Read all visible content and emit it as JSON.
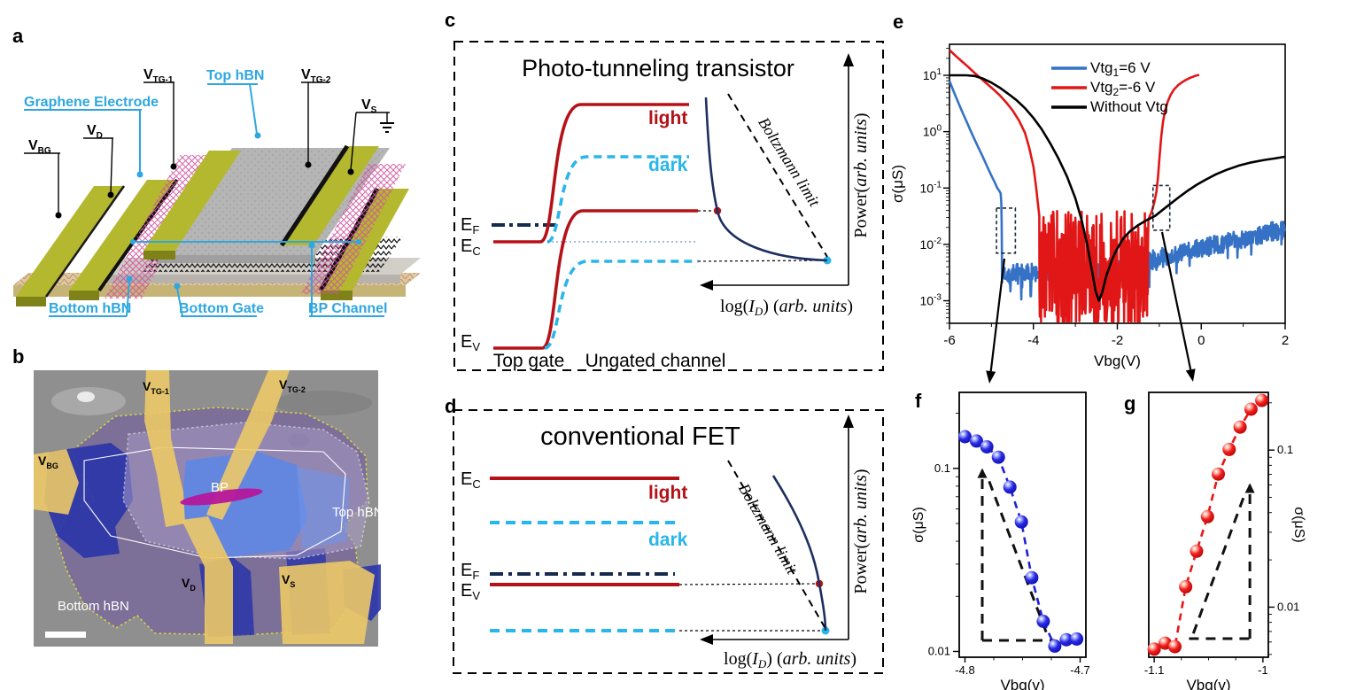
{
  "figure": {
    "background": "#ffffff"
  },
  "tags": {
    "a": "a",
    "b": "b",
    "c": "c",
    "d": "d",
    "e": "e",
    "f": "f",
    "g": "g"
  },
  "panel_a": {
    "labels": {
      "vbg": {
        "base": "V",
        "sub": "BG"
      },
      "vd": {
        "base": "V",
        "sub": "D"
      },
      "vtg1": {
        "base": "V",
        "sub": "TG-1"
      },
      "vtg2": {
        "base": "V",
        "sub": "TG-2"
      },
      "vs": {
        "base": "V",
        "sub": "S"
      },
      "top_hbn": "Top hBN",
      "graphene_electrode": "Graphene Electrode",
      "bottom_hbn": "Bottom hBN",
      "bottom_gate": "Bottom Gate",
      "bp_channel": "BP Channel"
    },
    "colors": {
      "material_label": "#2ea7e0",
      "electrode_top": "#b4b82f",
      "electrode_side": "#7e8218",
      "substrate": "#d9cd92",
      "hbn_slab": "#c9c5bf",
      "top_hbn": "#b5b5b5",
      "graphene": "#cf539c"
    }
  },
  "panel_b": {
    "labels": {
      "vtg1": {
        "base": "V",
        "sub": "TG-1"
      },
      "vtg2": {
        "base": "V",
        "sub": "TG-2"
      },
      "vbg": {
        "base": "V",
        "sub": "BG"
      },
      "vd": {
        "base": "V",
        "sub": "D"
      },
      "vs": {
        "base": "V",
        "sub": "S"
      },
      "bp": "BP",
      "top_hbn": "Top hBN",
      "bottom_hbn": "Bottom hBN"
    }
  },
  "panel_c": {
    "title": "Photo-tunneling transistor",
    "bands": {
      "ef": {
        "base": "E",
        "sub": "F"
      },
      "ec": {
        "base": "E",
        "sub": "C"
      },
      "ev": {
        "base": "E",
        "sub": "V"
      }
    },
    "curves": {
      "light": "light",
      "dark": "dark"
    },
    "boltzmann": "Boltzmann limit",
    "power_label": {
      "p1": "Power(",
      "p2": "arb. units",
      "p3": ")"
    },
    "log_label": {
      "p1": "log(",
      "p2": "I",
      "p3": "D",
      "p4": ") (",
      "p5": "arb. units",
      "p6": ")"
    },
    "x_regions": {
      "top_gate": "Top gate",
      "ungated": "Ungated channel"
    }
  },
  "panel_d": {
    "title": "conventional FET",
    "bands": {
      "ef": {
        "base": "E",
        "sub": "F"
      },
      "ec": {
        "base": "E",
        "sub": "C"
      },
      "ev": {
        "base": "E",
        "sub": "V"
      }
    },
    "curves": {
      "light": "light",
      "dark": "dark"
    },
    "boltzmann": "Boltzmann limit",
    "power_label": {
      "p1": "Power(",
      "p2": "arb. units",
      "p3": ")"
    },
    "log_label": {
      "p1": "log(",
      "p2": "I",
      "p3": "D",
      "p4": ") (",
      "p5": "arb. units",
      "p6": ")"
    }
  },
  "chart_data": [
    {
      "id": "e",
      "type": "line",
      "xlabel": "Vbg(V)",
      "ylabel": "σ(μS)",
      "xlim": [
        -6,
        2
      ],
      "xticks": [
        -6,
        -4,
        -2,
        0,
        2
      ],
      "x_minor_ticks": [
        -5,
        -3,
        -1,
        1
      ],
      "ylim_exp": [
        -3.4,
        1.55
      ],
      "ytick_exps": [
        1,
        0,
        -1,
        -2,
        -3
      ],
      "grid": false,
      "legend_position": "top-center",
      "legend": [
        {
          "pre": "Vtg",
          "sub": "1",
          "post": "=6 V",
          "color": "#3572c6"
        },
        {
          "pre": "Vtg",
          "sub": "2",
          "post": "=-6 V",
          "color": "#e11717"
        },
        {
          "pre": "Without Vtg",
          "sub": "",
          "post": "",
          "color": "#000000"
        }
      ],
      "series": [
        {
          "name": "Vtg1=6V",
          "color": "#3572c6",
          "segments": [
            {
              "type": "points",
              "pts": [
                [
                  -6,
                  8
                ],
                [
                  -5.92,
                  5.6
                ],
                [
                  -5.84,
                  4
                ],
                [
                  -5.76,
                  2.9
                ],
                [
                  -5.68,
                  2.1
                ],
                [
                  -5.6,
                  1.55
                ],
                [
                  -5.5,
                  1.05
                ],
                [
                  -5.4,
                  0.72
                ],
                [
                  -5.3,
                  0.5
                ],
                [
                  -5.2,
                  0.35
                ],
                [
                  -5.1,
                  0.24
                ],
                [
                  -5,
                  0.165
                ],
                [
                  -4.92,
                  0.125
                ],
                [
                  -4.86,
                  0.1
                ],
                [
                  -4.81,
                  0.088
                ],
                [
                  -4.78,
                  0.08
                ],
                [
                  -4.765,
                  0.055
                ],
                [
                  -4.757,
                  0.025
                ],
                [
                  -4.752,
                  0.01
                ],
                [
                  -4.75,
                  0.0062
                ]
              ]
            },
            {
              "type": "noise",
              "x0": -4.748,
              "x1": 2,
              "step": 0.01,
              "base0": 0.0031,
              "xbreak": -2.5,
              "base1": 0.019,
              "amp": 0.17,
              "spike": 0.04,
              "spike_depth": 0.3,
              "seed": 7
            }
          ]
        },
        {
          "name": "Vtg2=-6V",
          "color": "#e11717",
          "segments": [
            {
              "type": "points",
              "pts": [
                [
                  -6,
                  28
                ],
                [
                  -5.85,
                  22
                ],
                [
                  -5.7,
                  17.5
                ],
                [
                  -5.55,
                  14
                ],
                [
                  -5.4,
                  11
                ],
                [
                  -5.25,
                  8.8
                ],
                [
                  -5.1,
                  7
                ],
                [
                  -4.95,
                  5.6
                ],
                [
                  -4.8,
                  4.4
                ],
                [
                  -4.65,
                  3.3
                ],
                [
                  -4.5,
                  2.4
                ],
                [
                  -4.35,
                  1.6
                ],
                [
                  -4.2,
                  0.95
                ],
                [
                  -4.1,
                  0.52
                ],
                [
                  -4,
                  0.24
                ],
                [
                  -3.94,
                  0.11
                ],
                [
                  -3.89,
                  0.05
                ],
                [
                  -3.86,
                  0.032
                ]
              ]
            },
            {
              "type": "noise",
              "x0": -3.855,
              "x1": -1.26,
              "step": 0.0075,
              "base0": 0.0045,
              "xbreak": -1.26,
              "base1": 0.0045,
              "amp": 0.95,
              "spike": 0.2,
              "spike_depth": 0.85,
              "seed": 3
            },
            {
              "type": "points",
              "pts": [
                [
                  -1.26,
                  0.028
                ],
                [
                  -1.18,
                  0.038
                ],
                [
                  -1.12,
                  0.055
                ],
                [
                  -1.07,
                  0.085
                ],
                [
                  -1.03,
                  0.16
                ],
                [
                  -0.99,
                  0.38
                ],
                [
                  -0.95,
                  0.85
                ],
                [
                  -0.91,
                  1.5
                ],
                [
                  -0.86,
                  2.4
                ],
                [
                  -0.8,
                  3.4
                ],
                [
                  -0.73,
                  4.5
                ],
                [
                  -0.65,
                  5.6
                ],
                [
                  -0.55,
                  6.7
                ],
                [
                  -0.45,
                  7.6
                ],
                [
                  -0.35,
                  8.4
                ],
                [
                  -0.25,
                  9.1
                ],
                [
                  -0.15,
                  9.7
                ],
                [
                  -0.05,
                  10.2
                ]
              ]
            }
          ]
        },
        {
          "name": "Without Vtg",
          "color": "#000000",
          "segments": [
            {
              "type": "points",
              "pts": [
                [
                  -6,
                  10
                ],
                [
                  -5.6,
                  10
                ],
                [
                  -5.4,
                  9.7
                ],
                [
                  -5.2,
                  8.7
                ],
                [
                  -5,
                  7.4
                ],
                [
                  -4.8,
                  6
                ],
                [
                  -4.6,
                  4.7
                ],
                [
                  -4.4,
                  3.6
                ],
                [
                  -4.2,
                  2.6
                ],
                [
                  -4,
                  1.75
                ],
                [
                  -3.8,
                  1.1
                ],
                [
                  -3.6,
                  0.62
                ],
                [
                  -3.4,
                  0.33
                ],
                [
                  -3.2,
                  0.16
                ],
                [
                  -3,
                  0.066
                ],
                [
                  -2.85,
                  0.027
                ],
                [
                  -2.72,
                  0.01
                ],
                [
                  -2.62,
                  0.004
                ],
                [
                  -2.52,
                  0.0015
                ],
                [
                  -2.44,
                  0.001
                ],
                [
                  -2.36,
                  0.0014
                ],
                [
                  -2.26,
                  0.0028
                ],
                [
                  -2.12,
                  0.0055
                ],
                [
                  -2,
                  0.0085
                ],
                [
                  -1.85,
                  0.013
                ],
                [
                  -1.7,
                  0.017
                ],
                [
                  -1.5,
                  0.022
                ],
                [
                  -1.3,
                  0.027
                ],
                [
                  -1.1,
                  0.032
                ],
                [
                  -0.9,
                  0.042
                ],
                [
                  -0.7,
                  0.055
                ],
                [
                  -0.5,
                  0.072
                ],
                [
                  -0.3,
                  0.092
                ],
                [
                  -0.1,
                  0.115
                ],
                [
                  0.1,
                  0.14
                ],
                [
                  0.35,
                  0.175
                ],
                [
                  0.6,
                  0.21
                ],
                [
                  0.9,
                  0.25
                ],
                [
                  1.2,
                  0.285
                ],
                [
                  1.5,
                  0.315
                ],
                [
                  1.75,
                  0.335
                ],
                [
                  2,
                  0.36
                ]
              ]
            }
          ]
        }
      ],
      "boxes": [
        {
          "x0": -4.88,
          "x1": -4.43,
          "y0": 0.007,
          "y1": 0.044
        },
        {
          "x0": -1.15,
          "x1": -0.75,
          "y0": 0.0178,
          "y1": 0.111
        }
      ]
    },
    {
      "id": "f",
      "type": "scatter",
      "xlabel": "Vbg(v)",
      "ylabel": "σ(μS)",
      "color": "#2020d8",
      "xlim": [
        -4.805,
        -4.695
      ],
      "xticks": [
        -4.8,
        -4.7
      ],
      "xtick_labels": [
        "-4.8",
        "-4.7"
      ],
      "x_minor_ticks": [
        -4.775,
        -4.75,
        -4.725
      ],
      "ylim": [
        0.0093,
        0.26
      ],
      "yticks": [
        0.1,
        0.01
      ],
      "ytick_labels": [
        "0.1",
        "0.01"
      ],
      "points": [
        [
          -4.8,
          0.149
        ],
        [
          -4.79,
          0.141
        ],
        [
          -4.781,
          0.131
        ],
        [
          -4.771,
          0.115
        ],
        [
          -4.761,
          0.079
        ],
        [
          -4.751,
          0.051
        ],
        [
          -4.742,
          0.0253
        ],
        [
          -4.732,
          0.0146
        ],
        [
          -4.722,
          0.0107
        ],
        [
          -4.712,
          0.0116
        ],
        [
          -4.703,
          0.0117
        ]
      ],
      "guide": {
        "segments": [
          [
            -4.785,
            0.0115,
            -4.785,
            0.098
          ],
          [
            -4.785,
            0.0115,
            -4.722,
            0.0115
          ],
          [
            -4.779,
            0.085,
            -4.729,
            0.0125
          ]
        ],
        "arrow": [
          -4.785,
          0.098
        ]
      }
    },
    {
      "id": "g",
      "type": "scatter",
      "xlabel": "Vbg(v)",
      "ylabel": "σ(μS)",
      "color": "#e81515",
      "xlim": [
        -1.105,
        -0.995
      ],
      "xticks": [
        -1.1,
        -1
      ],
      "xtick_labels": [
        "-1.1",
        "-1"
      ],
      "x_minor_ticks": [
        -1.075,
        -1.05,
        -1.025
      ],
      "ylim": [
        0.0048,
        0.233
      ],
      "yticks": [
        0.1,
        0.01
      ],
      "ytick_labels": [
        "0.1",
        "0.01"
      ],
      "points": [
        [
          -1.1,
          0.0054
        ],
        [
          -1.09,
          0.0059
        ],
        [
          -1.081,
          0.0056
        ],
        [
          -1.071,
          0.0135
        ],
        [
          -1.061,
          0.0227
        ],
        [
          -1.051,
          0.0377
        ],
        [
          -1.041,
          0.0704
        ],
        [
          -1.031,
          0.101
        ],
        [
          -1.021,
          0.14
        ],
        [
          -1.011,
          0.182
        ],
        [
          -1.001,
          0.207
        ]
      ],
      "guide": {
        "segments": [
          [
            -1.068,
            0.0063,
            -1.012,
            0.0063
          ],
          [
            -1.012,
            0.0063,
            -1.012,
            0.06
          ],
          [
            -1.064,
            0.0068,
            -1.016,
            0.054
          ]
        ],
        "arrow": [
          -1.012,
          0.06
        ]
      }
    }
  ]
}
